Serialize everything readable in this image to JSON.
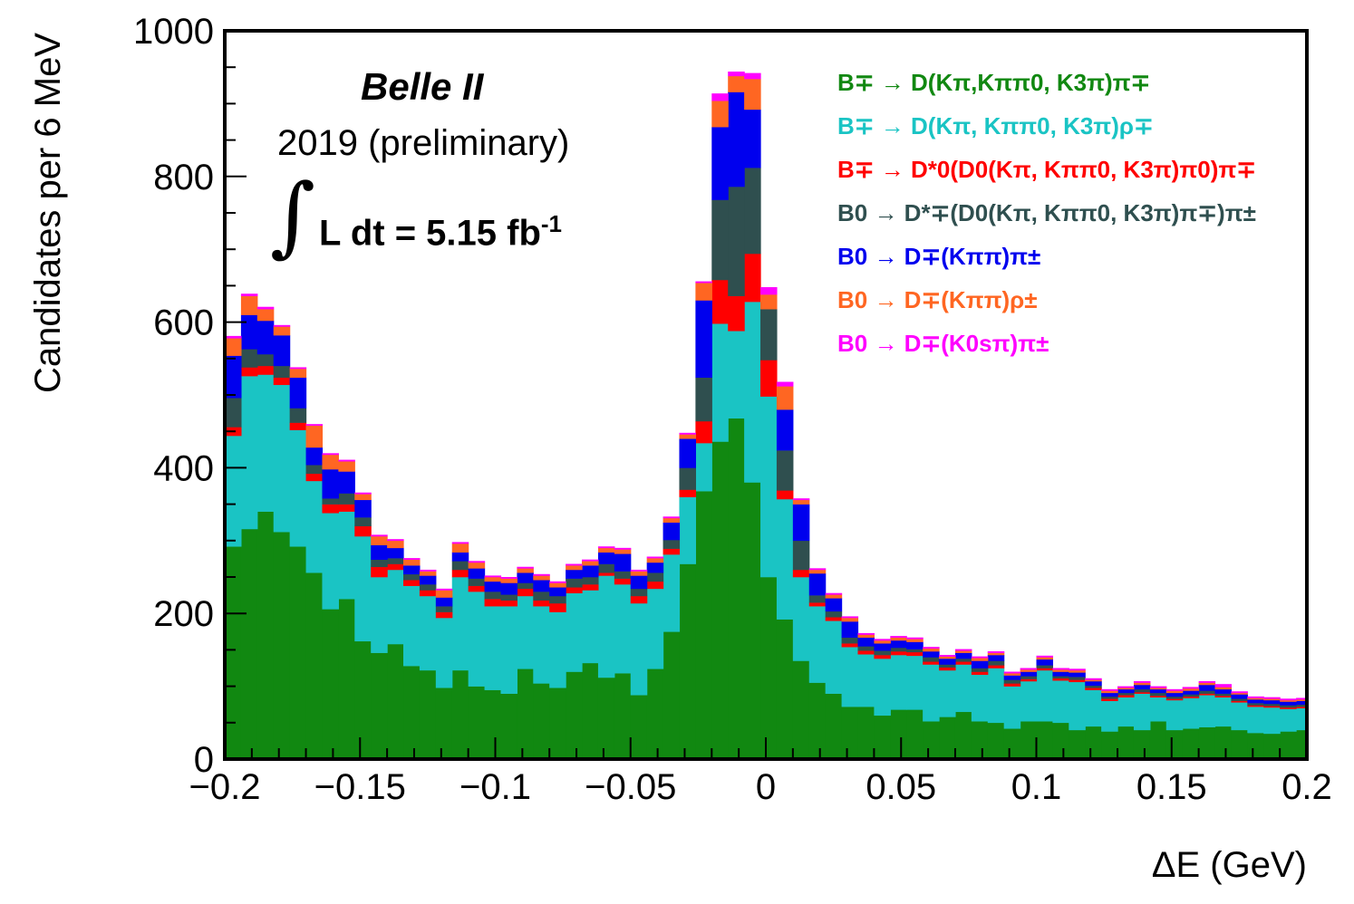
{
  "chart_data": {
    "type": "stacked-histogram",
    "title": "",
    "experiment_label": "Belle II",
    "year_label": "2019 (preliminary)",
    "integral_symbol": "∫",
    "luminosity_label": "L dt = 5.15 fb",
    "luminosity_exponent": "-1",
    "xlabel": "ΔE (GeV)",
    "ylabel": "Candidates per 6 MeV",
    "xlim": [
      -0.2,
      0.2
    ],
    "ylim": [
      0,
      1000
    ],
    "bin_width": 0.006,
    "x_ticks": [
      {
        "value": -0.2,
        "label": "−0.2"
      },
      {
        "value": -0.15,
        "label": "−0.15"
      },
      {
        "value": -0.1,
        "label": "−0.1"
      },
      {
        "value": -0.05,
        "label": "−0.05"
      },
      {
        "value": 0,
        "label": "0"
      },
      {
        "value": 0.05,
        "label": "0.05"
      },
      {
        "value": 0.1,
        "label": "0.1"
      },
      {
        "value": 0.15,
        "label": "0.15"
      },
      {
        "value": 0.2,
        "label": "0.2"
      }
    ],
    "y_ticks": [
      {
        "value": 0,
        "label": "0"
      },
      {
        "value": 200,
        "label": "200"
      },
      {
        "value": 400,
        "label": "400"
      },
      {
        "value": 600,
        "label": "600"
      },
      {
        "value": 800,
        "label": "800"
      },
      {
        "value": 1000,
        "label": "1000"
      }
    ],
    "bin_centers": [
      -0.197,
      -0.191,
      -0.185,
      -0.179,
      -0.173,
      -0.167,
      -0.161,
      -0.155,
      -0.149,
      -0.143,
      -0.137,
      -0.131,
      -0.125,
      -0.119,
      -0.113,
      -0.107,
      -0.101,
      -0.095,
      -0.089,
      -0.083,
      -0.077,
      -0.071,
      -0.065,
      -0.059,
      -0.053,
      -0.047,
      -0.041,
      -0.035,
      -0.029,
      -0.023,
      -0.017,
      -0.011,
      -0.005,
      0.001,
      0.007,
      0.013,
      0.019,
      0.025,
      0.031,
      0.037,
      0.043,
      0.049,
      0.055,
      0.061,
      0.067,
      0.073,
      0.079,
      0.085,
      0.091,
      0.097,
      0.103,
      0.109,
      0.115,
      0.121,
      0.127,
      0.133,
      0.139,
      0.145,
      0.151,
      0.157,
      0.163,
      0.169,
      0.175,
      0.181,
      0.187,
      0.193,
      0.199
    ],
    "series": [
      {
        "name": "B∓ → D(Kπ,Kππ0, K3π)π∓",
        "color": "#118811",
        "values": [
          292,
          316,
          340,
          312,
          292,
          256,
          206,
          220,
          162,
          146,
          158,
          128,
          122,
          98,
          122,
          100,
          95,
          90,
          124,
          104,
          98,
          120,
          132,
          112,
          118,
          88,
          124,
          175,
          268,
          368,
          436,
          468,
          380,
          250,
          192,
          135,
          105,
          90,
          72,
          72,
          60,
          68,
          68,
          52,
          58,
          65,
          52,
          50,
          42,
          52,
          52,
          50,
          40,
          45,
          38,
          45,
          40,
          52,
          40,
          42,
          44,
          45,
          40,
          36,
          35,
          38,
          40
        ]
      },
      {
        "name": "B∓ → D(Kπ, Kππ0, K3π)ρ∓",
        "color": "#1ac4c4",
        "values": [
          152,
          210,
          188,
          202,
          160,
          126,
          132,
          120,
          144,
          104,
          102,
          110,
          102,
          96,
          128,
          130,
          115,
          120,
          100,
          106,
          104,
          108,
          100,
          140,
          122,
          126,
          110,
          106,
          92,
          66,
          162,
          120,
          248,
          248,
          165,
          115,
          105,
          100,
          82,
          72,
          78,
          75,
          74,
          78,
          64,
          65,
          64,
          75,
          58,
          55,
          70,
          58,
          66,
          50,
          42,
          40,
          50,
          33,
          41,
          42,
          44,
          40,
          38,
          36,
          36,
          31,
          30
        ]
      },
      {
        "name": "B∓ → D*0(D0(Kπ, Kππ0, K3π)π0)π∓",
        "color": "#ff0000",
        "values": [
          12,
          12,
          12,
          10,
          10,
          10,
          12,
          10,
          14,
          14,
          8,
          8,
          8,
          8,
          10,
          8,
          10,
          8,
          10,
          8,
          12,
          8,
          8,
          4,
          8,
          10,
          10,
          8,
          10,
          30,
          60,
          48,
          66,
          50,
          12,
          10,
          5,
          5,
          5,
          5,
          5,
          5,
          5,
          4,
          4,
          4,
          4,
          4,
          4,
          3,
          3,
          3,
          3,
          3,
          3,
          3,
          2,
          2,
          2,
          2,
          2,
          2,
          2,
          2,
          2,
          2,
          2
        ]
      },
      {
        "name": "B0 → D*∓(D0(Kπ, Kππ0, K3π)π∓)π±",
        "color": "#2f4f4f",
        "values": [
          40,
          25,
          16,
          16,
          20,
          12,
          8,
          15,
          12,
          10,
          8,
          8,
          8,
          8,
          12,
          10,
          10,
          8,
          8,
          12,
          10,
          12,
          10,
          12,
          10,
          10,
          12,
          12,
          30,
          60,
          110,
          150,
          118,
          70,
          55,
          40,
          10,
          8,
          8,
          6,
          6,
          5,
          4,
          6,
          4,
          4,
          5,
          6,
          5,
          4,
          4,
          3,
          4,
          3,
          3,
          3,
          4,
          4,
          3,
          3,
          4,
          3,
          3,
          3,
          3,
          3,
          3
        ]
      },
      {
        "name": "B0 → D∓(Kππ)π±",
        "color": "#0000ee",
        "values": [
          58,
          47,
          46,
          42,
          42,
          24,
          40,
          30,
          24,
          20,
          14,
          12,
          12,
          12,
          12,
          14,
          14,
          16,
          14,
          16,
          12,
          12,
          16,
          16,
          24,
          18,
          14,
          24,
          40,
          106,
          100,
          130,
          80,
          0,
          56,
          50,
          30,
          18,
          22,
          12,
          10,
          10,
          10,
          8,
          8,
          8,
          10,
          8,
          6,
          6,
          8,
          6,
          6,
          6,
          5,
          5,
          6,
          5,
          5,
          5,
          8,
          6,
          6,
          5,
          5,
          5,
          5
        ]
      },
      {
        "name": "B0 → D∓(Kππ)ρ±",
        "color": "#ff6622",
        "values": [
          24,
          26,
          16,
          12,
          12,
          30,
          20,
          14,
          8,
          12,
          10,
          8,
          6,
          10,
          12,
          8,
          6,
          6,
          6,
          6,
          6,
          6,
          6,
          6,
          6,
          6,
          6,
          6,
          6,
          24,
          36,
          22,
          42,
          20,
          32,
          6,
          5,
          5,
          5,
          4,
          4,
          4,
          4,
          4,
          3,
          3,
          4,
          3,
          3,
          3,
          3,
          3,
          3,
          2,
          3,
          2,
          3,
          2,
          3,
          3,
          3,
          3,
          2,
          2,
          2,
          2,
          2
        ]
      },
      {
        "name": "B0 → D∓(K0sπ)π±",
        "color": "#ff00ff",
        "values": [
          3,
          3,
          3,
          2,
          2,
          2,
          2,
          2,
          2,
          2,
          2,
          2,
          2,
          2,
          2,
          2,
          2,
          2,
          2,
          2,
          2,
          2,
          2,
          2,
          2,
          2,
          2,
          2,
          2,
          2,
          10,
          6,
          8,
          10,
          6,
          2,
          2,
          2,
          2,
          2,
          2,
          2,
          2,
          2,
          2,
          2,
          2,
          2,
          2,
          2,
          2,
          2,
          2,
          2,
          2,
          2,
          2,
          2,
          2,
          2,
          2,
          4,
          2,
          2,
          2,
          2,
          2
        ]
      }
    ],
    "legend_placement": "top-right",
    "legend": [
      {
        "color": "#118811",
        "label": "B∓ → D(Kπ,Kππ0, K3π)π∓"
      },
      {
        "color": "#1ac4c4",
        "label": "B∓ → D(Kπ, Kππ0, K3π)ρ∓"
      },
      {
        "color": "#ff0000",
        "label": "B∓ → D*0(D0(Kπ, Kππ0, K3π)π0)π∓"
      },
      {
        "color": "#2f4f4f",
        "label": "B0 → D*∓(D0(Kπ, Kππ0, K3π)π∓)π±"
      },
      {
        "color": "#0000ee",
        "label": "B0 → D∓(Kππ)π±"
      },
      {
        "color": "#ff6622",
        "label": "B0 → D∓(Kππ)ρ±"
      },
      {
        "color": "#ff00ff",
        "label": "B0 → D∓(K0sπ)π±"
      }
    ]
  }
}
